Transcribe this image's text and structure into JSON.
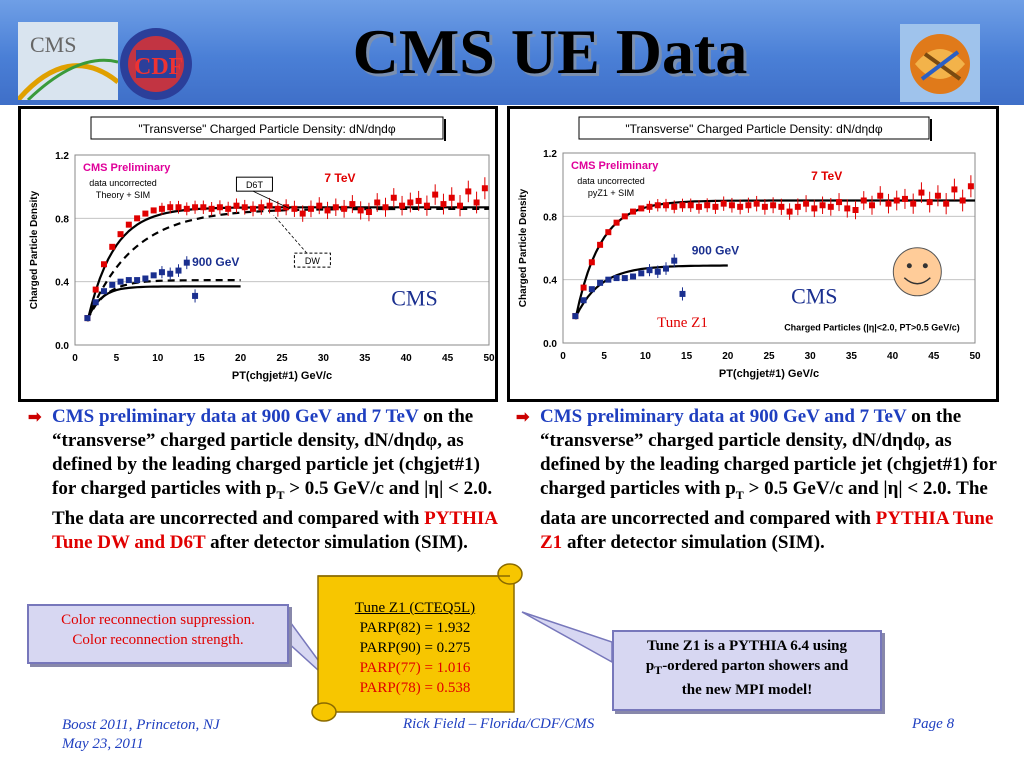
{
  "header": {
    "title": "CMS UE Data",
    "logo_cms_text": "CMS",
    "logo_cdf_text": "CDF"
  },
  "colors": {
    "red": "#e00000",
    "blue": "#1a2f8f",
    "header_blue": "#4a7fd6",
    "scroll_yellow": "#f7c600"
  },
  "chart_data": [
    {
      "type": "scatter",
      "title": "\"Transverse\" Charged Particle Density: dN/dηdφ",
      "xlabel": "PT(chgjet#1) GeV/c",
      "ylabel": "Charged Particle Density",
      "xlim": [
        0,
        50
      ],
      "ylim": [
        0,
        1.2
      ],
      "xticks": [
        "0",
        "5",
        "10",
        "15",
        "20",
        "25",
        "30",
        "35",
        "40",
        "45",
        "50"
      ],
      "yticks": [
        "0.0",
        "0.4",
        "0.8",
        "1.2"
      ],
      "annotations": {
        "preliminary": "CMS Preliminary",
        "note1": "data uncorrected",
        "note2": "Theory + SIM",
        "label_7tev": "7 TeV",
        "label_900gev": "900 GeV",
        "label_d6t": "D6T",
        "label_dw": "DW",
        "label_cms": "CMS"
      },
      "series": [
        {
          "name": "7 TeV",
          "x": [
            1.5,
            2.5,
            3.5,
            4.5,
            5.5,
            6.5,
            7.5,
            8.5,
            9.5,
            10.5,
            11.5,
            12.5,
            13.5,
            14.5,
            15.5,
            16.5,
            17.5,
            18.5,
            19.5,
            20.5,
            21.5,
            22.5,
            23.5,
            24.5,
            25.5,
            26.5,
            27.5,
            28.5,
            29.5,
            30.5,
            31.5,
            32.5,
            33.5,
            34.5,
            35.5,
            36.5,
            37.5,
            38.5,
            39.5,
            40.5,
            41.5,
            42.5,
            43.5,
            44.5,
            45.5,
            46.5,
            47.5,
            48.5,
            49.5
          ],
          "y": [
            0.17,
            0.35,
            0.51,
            0.62,
            0.7,
            0.76,
            0.8,
            0.83,
            0.85,
            0.86,
            0.87,
            0.87,
            0.86,
            0.87,
            0.87,
            0.86,
            0.87,
            0.86,
            0.88,
            0.87,
            0.86,
            0.87,
            0.88,
            0.86,
            0.87,
            0.86,
            0.83,
            0.86,
            0.88,
            0.85,
            0.87,
            0.86,
            0.89,
            0.85,
            0.84,
            0.9,
            0.87,
            0.93,
            0.88,
            0.9,
            0.91,
            0.88,
            0.95,
            0.89,
            0.93,
            0.88,
            0.97,
            0.9,
            0.99
          ]
        },
        {
          "name": "900 GeV",
          "x": [
            1.5,
            2.5,
            3.5,
            4.5,
            5.5,
            6.5,
            7.5,
            8.5,
            9.5,
            10.5,
            11.5,
            12.5,
            13.5,
            14.5
          ],
          "y": [
            0.17,
            0.27,
            0.34,
            0.38,
            0.4,
            0.41,
            0.41,
            0.42,
            0.44,
            0.46,
            0.45,
            0.47,
            0.52,
            0.31
          ]
        }
      ]
    },
    {
      "type": "scatter",
      "title": "\"Transverse\" Charged Particle Density: dN/dηdφ",
      "xlabel": "PT(chgjet#1) GeV/c",
      "ylabel": "Charged Particle Density",
      "xlim": [
        0,
        50
      ],
      "ylim": [
        0,
        1.2
      ],
      "xticks": [
        "0",
        "5",
        "10",
        "15",
        "20",
        "25",
        "30",
        "35",
        "40",
        "45",
        "50"
      ],
      "yticks": [
        "0.0",
        "0.4",
        "0.8",
        "1.2"
      ],
      "annotations": {
        "preliminary": "CMS Preliminary",
        "note1": "data uncorrected",
        "note2": "pyZ1 + SIM",
        "label_7tev": "7 TeV",
        "label_900gev": "900 GeV",
        "label_cms": "CMS",
        "label_tune": "Tune Z1",
        "cuts": "Charged Particles (|η|<2.0, PT>0.5 GeV/c)"
      },
      "series": [
        {
          "name": "7 TeV",
          "x": [
            1.5,
            2.5,
            3.5,
            4.5,
            5.5,
            6.5,
            7.5,
            8.5,
            9.5,
            10.5,
            11.5,
            12.5,
            13.5,
            14.5,
            15.5,
            16.5,
            17.5,
            18.5,
            19.5,
            20.5,
            21.5,
            22.5,
            23.5,
            24.5,
            25.5,
            26.5,
            27.5,
            28.5,
            29.5,
            30.5,
            31.5,
            32.5,
            33.5,
            34.5,
            35.5,
            36.5,
            37.5,
            38.5,
            39.5,
            40.5,
            41.5,
            42.5,
            43.5,
            44.5,
            45.5,
            46.5,
            47.5,
            48.5,
            49.5
          ],
          "y": [
            0.17,
            0.35,
            0.51,
            0.62,
            0.7,
            0.76,
            0.8,
            0.83,
            0.85,
            0.86,
            0.87,
            0.87,
            0.86,
            0.87,
            0.87,
            0.86,
            0.87,
            0.86,
            0.88,
            0.87,
            0.86,
            0.87,
            0.88,
            0.86,
            0.87,
            0.86,
            0.83,
            0.86,
            0.88,
            0.85,
            0.87,
            0.86,
            0.89,
            0.85,
            0.84,
            0.9,
            0.87,
            0.93,
            0.88,
            0.9,
            0.91,
            0.88,
            0.95,
            0.89,
            0.93,
            0.88,
            0.97,
            0.9,
            0.99
          ]
        },
        {
          "name": "900 GeV",
          "x": [
            1.5,
            2.5,
            3.5,
            4.5,
            5.5,
            6.5,
            7.5,
            8.5,
            9.5,
            10.5,
            11.5,
            12.5,
            13.5,
            14.5
          ],
          "y": [
            0.17,
            0.27,
            0.34,
            0.38,
            0.4,
            0.41,
            0.41,
            0.42,
            0.44,
            0.46,
            0.45,
            0.47,
            0.52,
            0.31
          ]
        }
      ]
    }
  ],
  "left_text": {
    "p1": "CMS preliminary data at  900 GeV and 7 TeV",
    "p2": " on the “transverse” charged particle density, dN/dηdφ, as defined by the leading charged particle jet (chgjet#1) for charged particles with p",
    "sub": "T",
    "p3": " > 0.5 GeV/c and |η| < 2.0.  The data are uncorrected and compared with ",
    "red": "PYTHIA Tune DW and D6T",
    "p4": " after detector simulation (SIM)."
  },
  "right_text": {
    "p1": "CMS preliminary data at  900 GeV and 7 TeV",
    "p2": " on the “transverse” charged particle density, dN/dηdφ, as defined by the leading charged particle jet (chgjet#1) for charged particles with p",
    "sub": "T",
    "p3": " > 0.5 GeV/c and |η| < 2.0.  The data are uncorrected and compared with ",
    "red": "PYTHIA Tune Z1",
    "p4": " after detector simulation (SIM)."
  },
  "callout_left": {
    "line1": "Color reconnection suppression.",
    "line2": "Color reconnection strength."
  },
  "callout_right": {
    "line1": "Tune Z1 is a PYTHIA 6.4 using",
    "line2a": "p",
    "sub": "T",
    "line2b": "-ordered parton showers and",
    "line3": "the new MPI model!"
  },
  "scroll": {
    "title": "Tune Z1 (CTEQ5L)",
    "l1": "PARP(82) = 1.932",
    "l2": "PARP(90) = 0.275",
    "l3": "PARP(77) = 1.016",
    "l4": "PARP(78) = 0.538"
  },
  "footer": {
    "left1": "Boost 2011, Princeton, NJ",
    "left2": "May 23, 2011",
    "center": "Rick Field – Florida/CDF/CMS",
    "right": "Page 8"
  }
}
